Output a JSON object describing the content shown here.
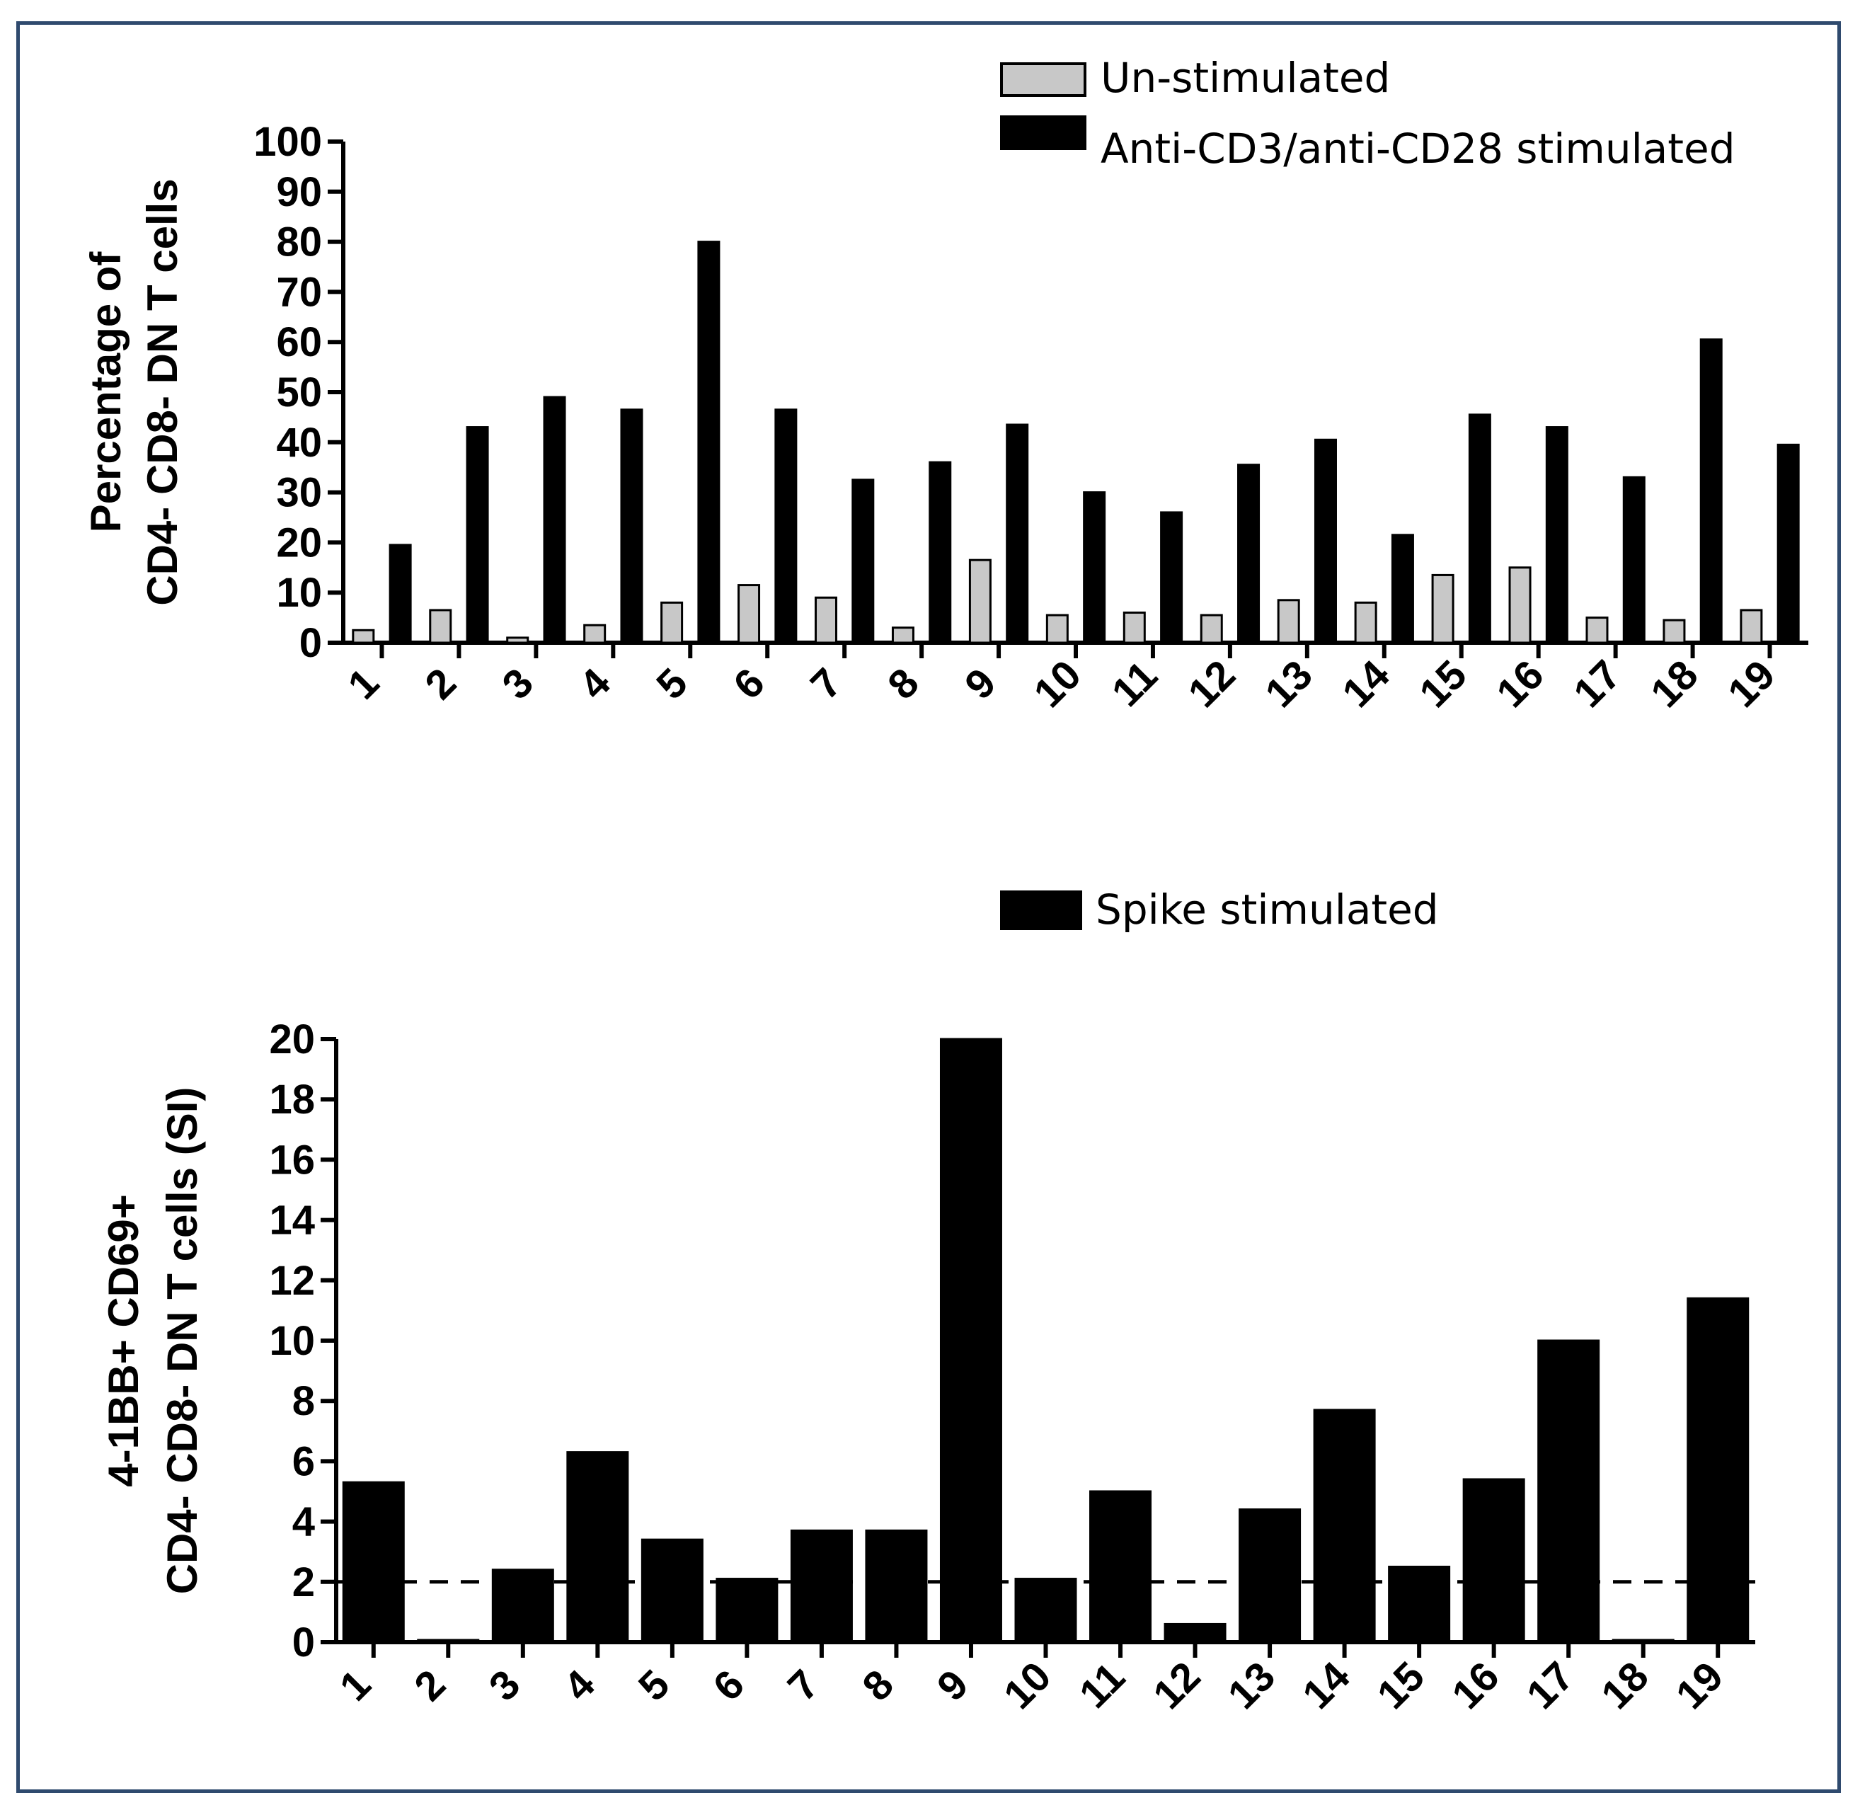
{
  "chart_data": [
    {
      "type": "bar",
      "ylabel": [
        "Percentage of",
        "CD4- CD8- DN T cells"
      ],
      "ylim": [
        0,
        100
      ],
      "yticks": [
        0,
        10,
        20,
        30,
        40,
        50,
        60,
        70,
        80,
        90,
        100
      ],
      "categories": [
        "1",
        "2",
        "3",
        "4",
        "5",
        "6",
        "7",
        "8",
        "9",
        "10",
        "11",
        "12",
        "13",
        "14",
        "15",
        "16",
        "17",
        "18",
        "19"
      ],
      "series": [
        {
          "name": "Un-stimulated",
          "color": "#c8c8c8",
          "values": [
            2.5,
            6.5,
            1,
            3.5,
            8,
            11.5,
            9,
            3,
            16.5,
            5.5,
            6,
            5.5,
            8.5,
            8,
            13.5,
            15,
            5,
            4.5,
            6.5
          ]
        },
        {
          "name": "Anti-CD3/anti-CD28 stimulated",
          "color": "#000000",
          "values": [
            19.5,
            43,
            49,
            46.5,
            80,
            46.5,
            32.5,
            36,
            43.5,
            30,
            26,
            35.5,
            40.5,
            21.5,
            45.5,
            43,
            33,
            60.5,
            39.5
          ]
        }
      ],
      "legend_position": "top-right",
      "grid": false
    },
    {
      "type": "bar",
      "ylabel": [
        "4-1BB+ CD69+",
        "CD4- CD8- DN T cells (SI)"
      ],
      "ylim": [
        0,
        20
      ],
      "yticks": [
        0,
        2,
        4,
        6,
        8,
        10,
        12,
        14,
        16,
        18,
        20
      ],
      "categories": [
        "1",
        "2",
        "3",
        "4",
        "5",
        "6",
        "7",
        "8",
        "9",
        "10",
        "11",
        "12",
        "13",
        "14",
        "15",
        "16",
        "17",
        "18",
        "19"
      ],
      "series": [
        {
          "name": "Spike stimulated",
          "color": "#000000",
          "values": [
            5.3,
            0.05,
            2.4,
            6.3,
            3.4,
            2.1,
            3.7,
            3.7,
            20,
            2.1,
            5,
            0.6,
            4.4,
            7.7,
            2.5,
            5.4,
            10,
            0.05,
            11.4
          ]
        }
      ],
      "reference_line": {
        "value": 2,
        "style": "dashed"
      },
      "legend_position": "top-right",
      "grid": false
    }
  ]
}
